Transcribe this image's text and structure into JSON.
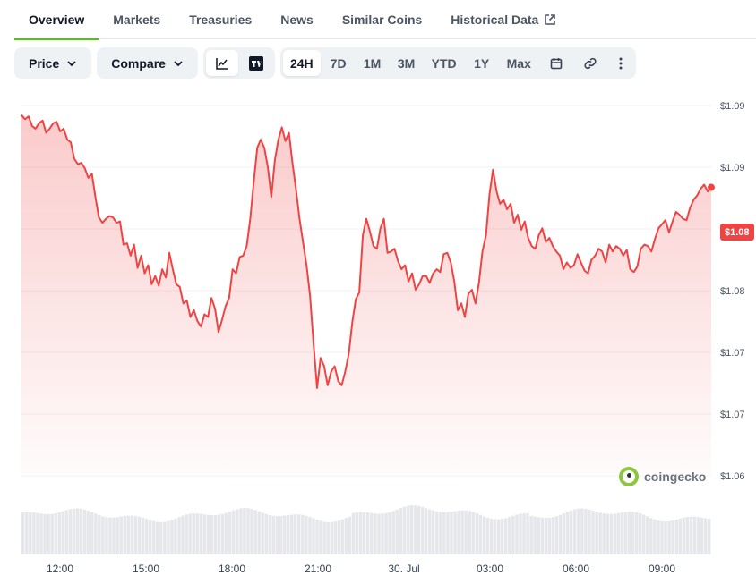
{
  "tabs": [
    {
      "label": "Overview",
      "active": true
    },
    {
      "label": "Markets"
    },
    {
      "label": "Treasuries"
    },
    {
      "label": "News"
    },
    {
      "label": "Similar Coins"
    },
    {
      "label": "Historical Data",
      "icon": "external-link-icon"
    }
  ],
  "toolbar": {
    "price_label": "Price",
    "compare_label": "Compare",
    "chart_types": [
      {
        "name": "line-chart-icon",
        "active": true
      },
      {
        "name": "tradingview-icon"
      }
    ],
    "ranges": [
      "24H",
      "7D",
      "1M",
      "3M",
      "YTD",
      "1Y",
      "Max"
    ],
    "active_range": "24H",
    "extra_icons": [
      "calendar-icon",
      "link-icon",
      "more-icon"
    ]
  },
  "current_price": "$1.08",
  "watermark": "coingecko",
  "colors": {
    "line": "#ef4444",
    "accent": "#4bcc00",
    "badge": "#ef4444"
  },
  "chart_data": {
    "type": "area",
    "y_tick_labels": [
      "$1.09",
      "$1.09",
      "$1.08",
      "$1.08",
      "$1.07",
      "$1.07",
      "$1.06"
    ],
    "x_tick_labels": [
      "12:00",
      "15:00",
      "18:00",
      "21:00",
      "30. Jul",
      "03:00",
      "06:00",
      "09:00"
    ],
    "ylim": [
      1.0625,
      1.0895
    ],
    "y": [
      1.0888,
      1.0885,
      1.0887,
      1.088,
      1.0878,
      1.0882,
      1.0884,
      1.0875,
      1.0878,
      1.0882,
      1.0883,
      1.0876,
      1.0878,
      1.087,
      1.0868,
      1.0856,
      1.0852,
      1.0853,
      1.0849,
      1.0842,
      1.0845,
      1.0828,
      1.0813,
      1.0809,
      1.0812,
      1.0814,
      1.0813,
      1.0809,
      1.081,
      1.0793,
      1.0794,
      1.0785,
      1.0793,
      1.0776,
      1.0785,
      1.0772,
      1.0778,
      1.0764,
      1.077,
      1.0763,
      1.0775,
      1.0769,
      1.0787,
      1.0775,
      1.0764,
      1.0762,
      1.075,
      1.0752,
      1.074,
      1.0745,
      1.0737,
      1.0733,
      1.0742,
      1.074,
      1.0754,
      1.0746,
      1.0729,
      1.0738,
      1.0748,
      1.0754,
      1.0775,
      1.0772,
      1.0784,
      1.0785,
      1.0792,
      1.0812,
      1.0839,
      1.0864,
      1.087,
      1.0864,
      1.085,
      1.0828,
      1.0855,
      1.087,
      1.0879,
      1.0869,
      1.0875,
      1.0853,
      1.0834,
      1.0812,
      1.0795,
      1.0778,
      1.0756,
      1.072,
      1.0688,
      1.071,
      1.0704,
      1.069,
      1.07,
      1.0704,
      1.0693,
      1.069,
      1.07,
      1.0713,
      1.0736,
      1.0753,
      1.0758,
      1.08,
      1.0812,
      1.0803,
      1.0792,
      1.079,
      1.0805,
      1.0812,
      1.0787,
      1.0788,
      1.079,
      1.0781,
      1.0775,
      1.0778,
      1.0766,
      1.0772,
      1.076,
      1.0764,
      1.077,
      1.077,
      1.0765,
      1.0772,
      1.0775,
      1.0773,
      1.0786,
      1.0787,
      1.078,
      1.0766,
      1.0745,
      1.075,
      1.074,
      1.0757,
      1.076,
      1.075,
      1.0765,
      1.0788,
      1.08,
      1.083,
      1.0848,
      1.0832,
      1.0823,
      1.0826,
      1.0819,
      1.0823,
      1.0809,
      1.0815,
      1.0804,
      1.081,
      1.0798,
      1.0792,
      1.079,
      1.08,
      1.0805,
      1.0795,
      1.0798,
      1.0792,
      1.0788,
      1.0785,
      1.0775,
      1.078,
      1.0776,
      1.0778,
      1.0786,
      1.078,
      1.0774,
      1.0772,
      1.0782,
      1.0785,
      1.079,
      1.0788,
      1.078,
      1.0793,
      1.0788,
      1.0792,
      1.079,
      1.0785,
      1.0789,
      1.0775,
      1.0773,
      1.0777,
      1.079,
      1.0793,
      1.0792,
      1.0788,
      1.0797,
      1.0805,
      1.0808,
      1.0811,
      1.0802,
      1.081,
      1.0817,
      1.0815,
      1.0812,
      1.0811,
      1.082,
      1.0826,
      1.0829,
      1.0834,
      1.0837,
      1.0832,
      1.0835
    ]
  }
}
